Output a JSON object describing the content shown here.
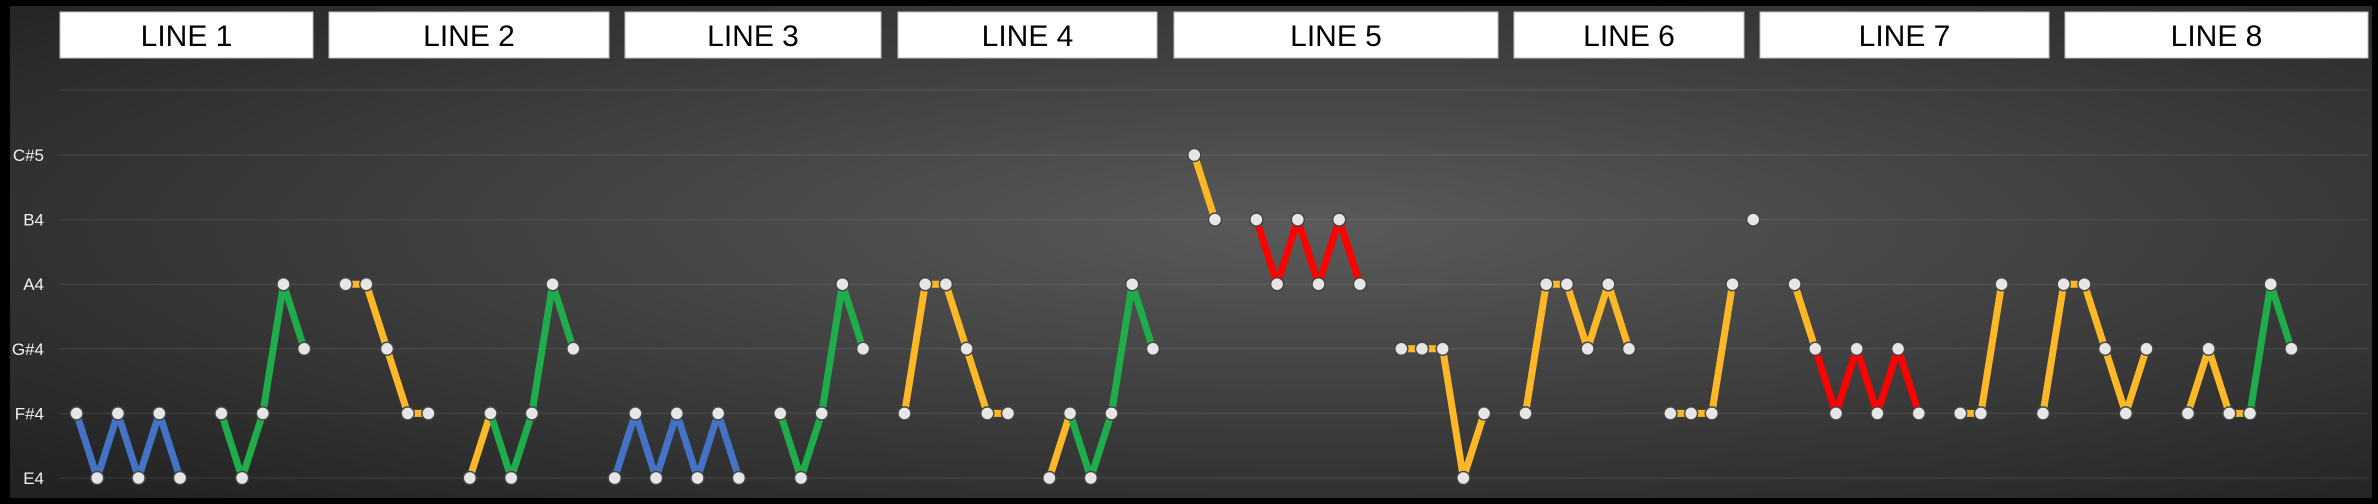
{
  "chart_data": {
    "type": "line",
    "y_categories": [
      "E4",
      "F#4",
      "G#4",
      "A4",
      "B4",
      "C#5"
    ],
    "grid": true,
    "legend": "none",
    "colors": {
      "background_edge": "#222222",
      "background_center": "#5a5a5a",
      "blue": "#4472c4",
      "green": "#1fad4b",
      "gold": "#fdb827",
      "red": "#ff0000",
      "marker_fill": "#e6e6e6",
      "marker_stroke": "#444444",
      "header_fill": "#ffffff"
    },
    "lines": [
      {
        "label": "LINE 1"
      },
      {
        "label": "LINE 2"
      },
      {
        "label": "LINE 3"
      },
      {
        "label": "LINE 4"
      },
      {
        "label": "LINE 5"
      },
      {
        "label": "LINE 6"
      },
      {
        "label": "LINE 7"
      },
      {
        "label": "LINE 8"
      }
    ],
    "segments": [
      {
        "color": "blue",
        "points": [
          [
            1,
            "F#4"
          ],
          [
            2,
            "E4"
          ],
          [
            3,
            "F#4"
          ],
          [
            4,
            "E4"
          ],
          [
            5,
            "F#4"
          ],
          [
            6,
            "E4"
          ]
        ]
      },
      {
        "color": "green",
        "points": [
          [
            8,
            "F#4"
          ],
          [
            9,
            "E4"
          ],
          [
            10,
            "F#4"
          ],
          [
            11,
            "A4"
          ],
          [
            12,
            "G#4"
          ]
        ]
      },
      {
        "color": "gold",
        "points": [
          [
            14,
            "A4"
          ],
          [
            15,
            "A4"
          ],
          [
            16,
            "G#4"
          ],
          [
            17,
            "F#4"
          ],
          [
            18,
            "F#4"
          ]
        ]
      },
      {
        "color": "gold",
        "points": [
          [
            20,
            "E4"
          ],
          [
            21,
            "F#4"
          ]
        ]
      },
      {
        "color": "green",
        "points": [
          [
            21,
            "F#4"
          ],
          [
            22,
            "E4"
          ],
          [
            23,
            "F#4"
          ],
          [
            24,
            "A4"
          ],
          [
            25,
            "G#4"
          ]
        ]
      },
      {
        "color": "blue",
        "points": [
          [
            27,
            "E4"
          ],
          [
            28,
            "F#4"
          ],
          [
            29,
            "E4"
          ],
          [
            30,
            "F#4"
          ],
          [
            31,
            "E4"
          ],
          [
            32,
            "F#4"
          ],
          [
            33,
            "E4"
          ]
        ]
      },
      {
        "color": "green",
        "points": [
          [
            35,
            "F#4"
          ],
          [
            36,
            "E4"
          ],
          [
            37,
            "F#4"
          ],
          [
            38,
            "A4"
          ],
          [
            39,
            "G#4"
          ]
        ]
      },
      {
        "color": "gold",
        "points": [
          [
            41,
            "F#4"
          ],
          [
            42,
            "A4"
          ],
          [
            43,
            "A4"
          ],
          [
            44,
            "G#4"
          ],
          [
            45,
            "F#4"
          ],
          [
            46,
            "F#4"
          ]
        ]
      },
      {
        "color": "gold",
        "points": [
          [
            48,
            "E4"
          ],
          [
            49,
            "F#4"
          ]
        ]
      },
      {
        "color": "green",
        "points": [
          [
            49,
            "F#4"
          ],
          [
            50,
            "E4"
          ],
          [
            51,
            "F#4"
          ],
          [
            52,
            "A4"
          ],
          [
            53,
            "G#4"
          ]
        ]
      },
      {
        "color": "gold",
        "points": [
          [
            55,
            "C#5"
          ],
          [
            56,
            "B4"
          ]
        ]
      },
      {
        "color": "red",
        "points": [
          [
            58,
            "B4"
          ],
          [
            59,
            "A4"
          ],
          [
            60,
            "B4"
          ],
          [
            61,
            "A4"
          ],
          [
            62,
            "B4"
          ],
          [
            63,
            "A4"
          ]
        ]
      },
      {
        "color": "gold",
        "points": [
          [
            65,
            "G#4"
          ],
          [
            66,
            "G#4"
          ],
          [
            67,
            "G#4"
          ],
          [
            68,
            "E4"
          ],
          [
            69,
            "F#4"
          ]
        ]
      },
      {
        "color": "gold",
        "points": [
          [
            71,
            "F#4"
          ],
          [
            72,
            "A4"
          ],
          [
            73,
            "A4"
          ],
          [
            74,
            "G#4"
          ],
          [
            75,
            "A4"
          ],
          [
            76,
            "G#4"
          ]
        ]
      },
      {
        "color": "gold",
        "points": [
          [
            78,
            "F#4"
          ],
          [
            79,
            "F#4"
          ],
          [
            80,
            "F#4"
          ],
          [
            81,
            "A4"
          ]
        ]
      },
      {
        "color": "none",
        "points": [
          [
            82,
            "B4"
          ]
        ]
      },
      {
        "color": "gold",
        "points": [
          [
            84,
            "A4"
          ],
          [
            85,
            "G#4"
          ]
        ]
      },
      {
        "color": "red",
        "points": [
          [
            85,
            "G#4"
          ],
          [
            86,
            "F#4"
          ],
          [
            87,
            "G#4"
          ],
          [
            88,
            "F#4"
          ],
          [
            89,
            "G#4"
          ],
          [
            90,
            "F#4"
          ]
        ]
      },
      {
        "color": "gold",
        "points": [
          [
            92,
            "F#4"
          ],
          [
            93,
            "F#4"
          ],
          [
            94,
            "A4"
          ]
        ]
      },
      {
        "color": "gold",
        "points": [
          [
            96,
            "F#4"
          ],
          [
            97,
            "A4"
          ],
          [
            98,
            "A4"
          ],
          [
            99,
            "G#4"
          ],
          [
            100,
            "F#4"
          ],
          [
            101,
            "G#4"
          ]
        ]
      },
      {
        "color": "gold",
        "points": [
          [
            103,
            "F#4"
          ],
          [
            104,
            "G#4"
          ],
          [
            105,
            "F#4"
          ],
          [
            106,
            "F#4"
          ]
        ]
      },
      {
        "color": "green",
        "points": [
          [
            106,
            "F#4"
          ],
          [
            107,
            "A4"
          ],
          [
            108,
            "G#4"
          ]
        ]
      }
    ]
  }
}
